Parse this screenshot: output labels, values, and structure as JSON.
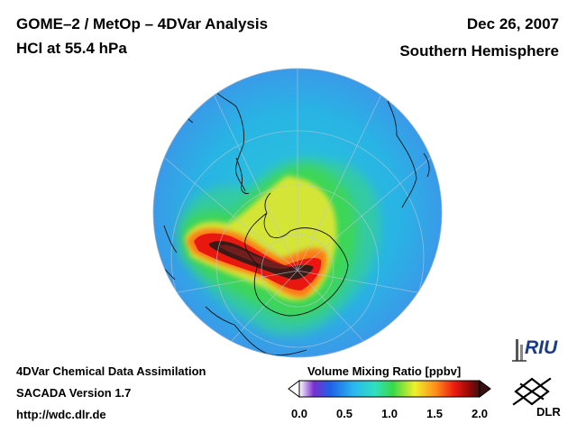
{
  "header": {
    "title_line1": "GOME–2 / MetOp – 4DVar Analysis",
    "title_line2": "HCl at 55.4 hPa",
    "date": "Dec 26, 2007",
    "region": "Southern Hemisphere"
  },
  "footer": {
    "line1": "4DVar Chemical Data Assimilation",
    "line2": "SACADA Version 1.7",
    "url": "http://wdc.dlr.de"
  },
  "colorbar": {
    "title": "Volume Mixing Ratio [ppbv]",
    "ticks": [
      "0.0",
      "0.5",
      "1.0",
      "1.5",
      "2.0"
    ],
    "min": 0.0,
    "max": 2.0,
    "colors": [
      "#ffffff",
      "#7a2fd0",
      "#1f5fe8",
      "#28b8f0",
      "#2fe0c0",
      "#38d848",
      "#f0f028",
      "#ff8a1a",
      "#ee1a10",
      "#9a0808",
      "#3a1010"
    ]
  },
  "map": {
    "projection": "orthographic",
    "hemisphere": "south",
    "background_level": 0.45,
    "peak_level": 2.0
  },
  "logos": {
    "riu": "RIU",
    "dlr": "DLR"
  }
}
